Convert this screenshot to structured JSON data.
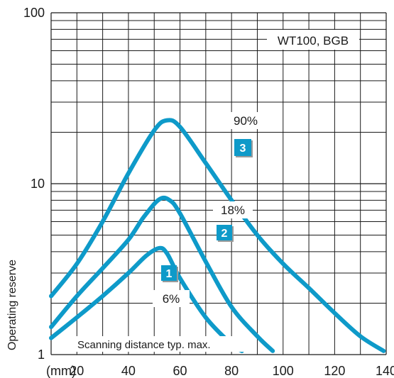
{
  "chart_data": {
    "type": "line",
    "title": "",
    "annotation": "WT100, BGB",
    "xlabel": "Scanning distance typ. max.",
    "ylabel": "Operating reserve",
    "x_unit": "(mm)",
    "x_ticks": [
      20,
      40,
      60,
      80,
      100,
      120,
      140
    ],
    "y_ticks": [
      1,
      10,
      100
    ],
    "xlim": [
      10,
      140
    ],
    "ylim": [
      1,
      100
    ],
    "y_scale": "log",
    "grid": true,
    "series": [
      {
        "name": "90%",
        "marker": "3",
        "color": "#0e9ac9",
        "points": [
          [
            10,
            2.2
          ],
          [
            20,
            3.4
          ],
          [
            30,
            6.0
          ],
          [
            40,
            11.5
          ],
          [
            50,
            20.5
          ],
          [
            55,
            23.5
          ],
          [
            60,
            21.5
          ],
          [
            70,
            13.2
          ],
          [
            80,
            8.0
          ],
          [
            90,
            5.0
          ],
          [
            100,
            3.4
          ],
          [
            110,
            2.45
          ],
          [
            120,
            1.75
          ],
          [
            130,
            1.28
          ],
          [
            139,
            1.05
          ]
        ]
      },
      {
        "name": "18%",
        "marker": "2",
        "color": "#0e9ac9",
        "points": [
          [
            10,
            1.45
          ],
          [
            20,
            2.2
          ],
          [
            30,
            3.2
          ],
          [
            40,
            4.7
          ],
          [
            46,
            6.4
          ],
          [
            52,
            8.1
          ],
          [
            56,
            8.0
          ],
          [
            60,
            6.7
          ],
          [
            70,
            3.5
          ],
          [
            80,
            1.9
          ],
          [
            90,
            1.28
          ],
          [
            96,
            1.05
          ]
        ]
      },
      {
        "name": "6%",
        "marker": "1",
        "color": "#0e9ac9",
        "points": [
          [
            10,
            1.25
          ],
          [
            20,
            1.65
          ],
          [
            30,
            2.2
          ],
          [
            40,
            3.0
          ],
          [
            47,
            3.8
          ],
          [
            52,
            4.2
          ],
          [
            55,
            3.9
          ],
          [
            60,
            2.8
          ],
          [
            70,
            1.65
          ],
          [
            80,
            1.15
          ],
          [
            84,
            1.05
          ]
        ]
      }
    ]
  }
}
